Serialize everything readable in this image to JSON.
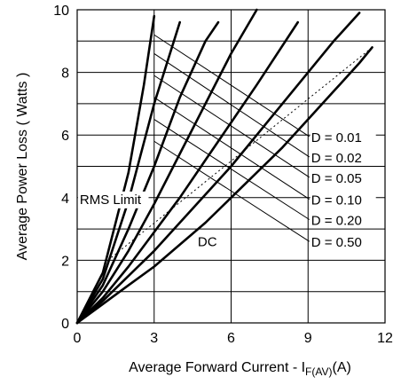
{
  "chart_data": {
    "type": "line",
    "title": "",
    "xlabel": "Average Forward Current - I",
    "xlabel_sub": "F(AV)",
    "xlabel_unit": "(A)",
    "ylabel": "Average  Power Loss  ( Watts )",
    "xlim": [
      0,
      12
    ],
    "ylim": [
      0,
      10
    ],
    "x_ticks": [
      0,
      3,
      6,
      9,
      12
    ],
    "y_ticks": [
      0,
      2,
      4,
      6,
      8,
      10
    ],
    "grid": true,
    "grid_x": [
      0,
      3,
      6,
      9,
      12
    ],
    "grid_y": [
      0,
      1,
      2,
      3,
      4,
      5,
      6,
      7,
      8,
      9,
      10
    ],
    "series": [
      {
        "name": "D = 0.01",
        "points": [
          [
            0,
            0
          ],
          [
            1.0,
            1.6
          ],
          [
            2.0,
            4.8
          ],
          [
            2.6,
            7.6
          ],
          [
            3.0,
            9.8
          ]
        ]
      },
      {
        "name": "D = 0.02",
        "points": [
          [
            0,
            0
          ],
          [
            1.0,
            1.4
          ],
          [
            2.0,
            3.9
          ],
          [
            3.0,
            7.0
          ],
          [
            4.0,
            9.6
          ]
        ]
      },
      {
        "name": "D = 0.05",
        "points": [
          [
            0,
            0
          ],
          [
            1.0,
            1.2
          ],
          [
            2.0,
            3.0
          ],
          [
            3.0,
            5.0
          ],
          [
            4.0,
            7.2
          ],
          [
            5.0,
            9.0
          ],
          [
            5.5,
            9.6
          ]
        ]
      },
      {
        "name": "D = 0.10",
        "points": [
          [
            0,
            0
          ],
          [
            1.0,
            1.0
          ],
          [
            2.0,
            2.3
          ],
          [
            3.0,
            3.8
          ],
          [
            4.0,
            5.4
          ],
          [
            5.0,
            7.0
          ],
          [
            6.0,
            8.6
          ],
          [
            7.0,
            10.0
          ]
        ]
      },
      {
        "name": "D = 0.20",
        "points": [
          [
            0,
            0
          ],
          [
            1.0,
            0.8
          ],
          [
            2.0,
            1.8
          ],
          [
            3.0,
            2.9
          ],
          [
            4.0,
            4.0
          ],
          [
            5.0,
            5.2
          ],
          [
            6.0,
            6.4
          ],
          [
            7.0,
            7.6
          ],
          [
            8.6,
            9.6
          ]
        ]
      },
      {
        "name": "D = 0.50",
        "points": [
          [
            0,
            0
          ],
          [
            1.0,
            0.7
          ],
          [
            2.0,
            1.5
          ],
          [
            3.0,
            2.3
          ],
          [
            4.0,
            3.2
          ],
          [
            5.0,
            4.1
          ],
          [
            6.0,
            5.0
          ],
          [
            7.0,
            6.0
          ],
          [
            8.0,
            7.0
          ],
          [
            9.0,
            8.0
          ],
          [
            10.0,
            9.0
          ],
          [
            11.0,
            9.9
          ]
        ]
      },
      {
        "name": "DC",
        "points": [
          [
            0,
            0
          ],
          [
            1.0,
            0.6
          ],
          [
            2.0,
            1.2
          ],
          [
            3.0,
            1.8
          ],
          [
            4.0,
            2.5
          ],
          [
            5.0,
            3.2
          ],
          [
            6.0,
            4.0
          ],
          [
            7.0,
            4.8
          ],
          [
            8.0,
            5.6
          ],
          [
            9.0,
            6.5
          ],
          [
            10.0,
            7.4
          ],
          [
            11.0,
            8.3
          ],
          [
            11.5,
            8.8
          ]
        ]
      }
    ],
    "rms_limit": {
      "label": "RMS Limit",
      "points": [
        [
          1.2,
          2.0
        ],
        [
          11.5,
          8.8
        ]
      ]
    },
    "label_leaders": [
      {
        "label": "D = 0.01",
        "from": [
          3.0,
          9.2
        ],
        "to": [
          9.05,
          5.95
        ]
      },
      {
        "label": "D = 0.02",
        "from": [
          3.0,
          8.6
        ],
        "to": [
          9.05,
          5.3
        ]
      },
      {
        "label": "D = 0.05",
        "from": [
          3.0,
          7.9
        ],
        "to": [
          9.05,
          4.65
        ]
      },
      {
        "label": "D = 0.10",
        "from": [
          3.0,
          7.2
        ],
        "to": [
          9.05,
          3.95
        ]
      },
      {
        "label": "D = 0.20",
        "from": [
          3.0,
          6.5
        ],
        "to": [
          9.05,
          3.3
        ]
      },
      {
        "label": "D = 0.50",
        "from": [
          3.0,
          5.8
        ],
        "to": [
          9.05,
          2.6
        ]
      }
    ],
    "annotations": [
      {
        "text": "RMS Limit",
        "x": 0.1,
        "y": 3.8
      },
      {
        "text": "DC",
        "x": 4.7,
        "y": 2.45
      }
    ],
    "colors": {
      "curve": "#000000",
      "grid": "#000000",
      "rms": "#000000"
    }
  }
}
